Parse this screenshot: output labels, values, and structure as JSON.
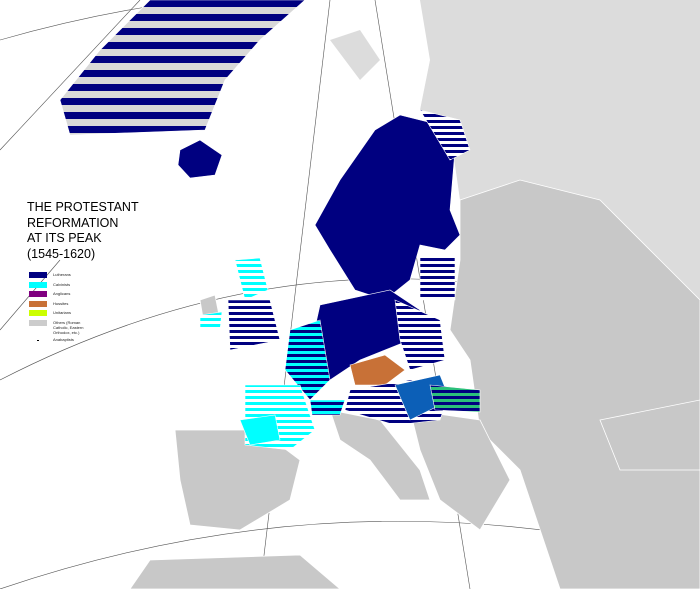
{
  "title": "THE PROTESTANT\nREFORMATION\nAT ITS PEAK\n(1545-1620)",
  "legend": [
    {
      "label": "Lutherans",
      "color": "#000080"
    },
    {
      "label": "Calvinists",
      "color": "#00ffff"
    },
    {
      "label": "Anglicans",
      "color": "#800080"
    },
    {
      "label": "Hussites",
      "color": "#c87137"
    },
    {
      "label": "Unitarians",
      "color": "#ccff00"
    },
    {
      "label": "Others (Roman Catholic, Eastern Orthodox, etc.)",
      "color": "#cccccc"
    },
    {
      "label": "Anabaptists",
      "color": "#000000"
    }
  ],
  "colors": {
    "sea": "#ffffff",
    "land_other": "#c8c8c8",
    "land_outside": "#dcdcdc",
    "borders": "#ffffff"
  }
}
